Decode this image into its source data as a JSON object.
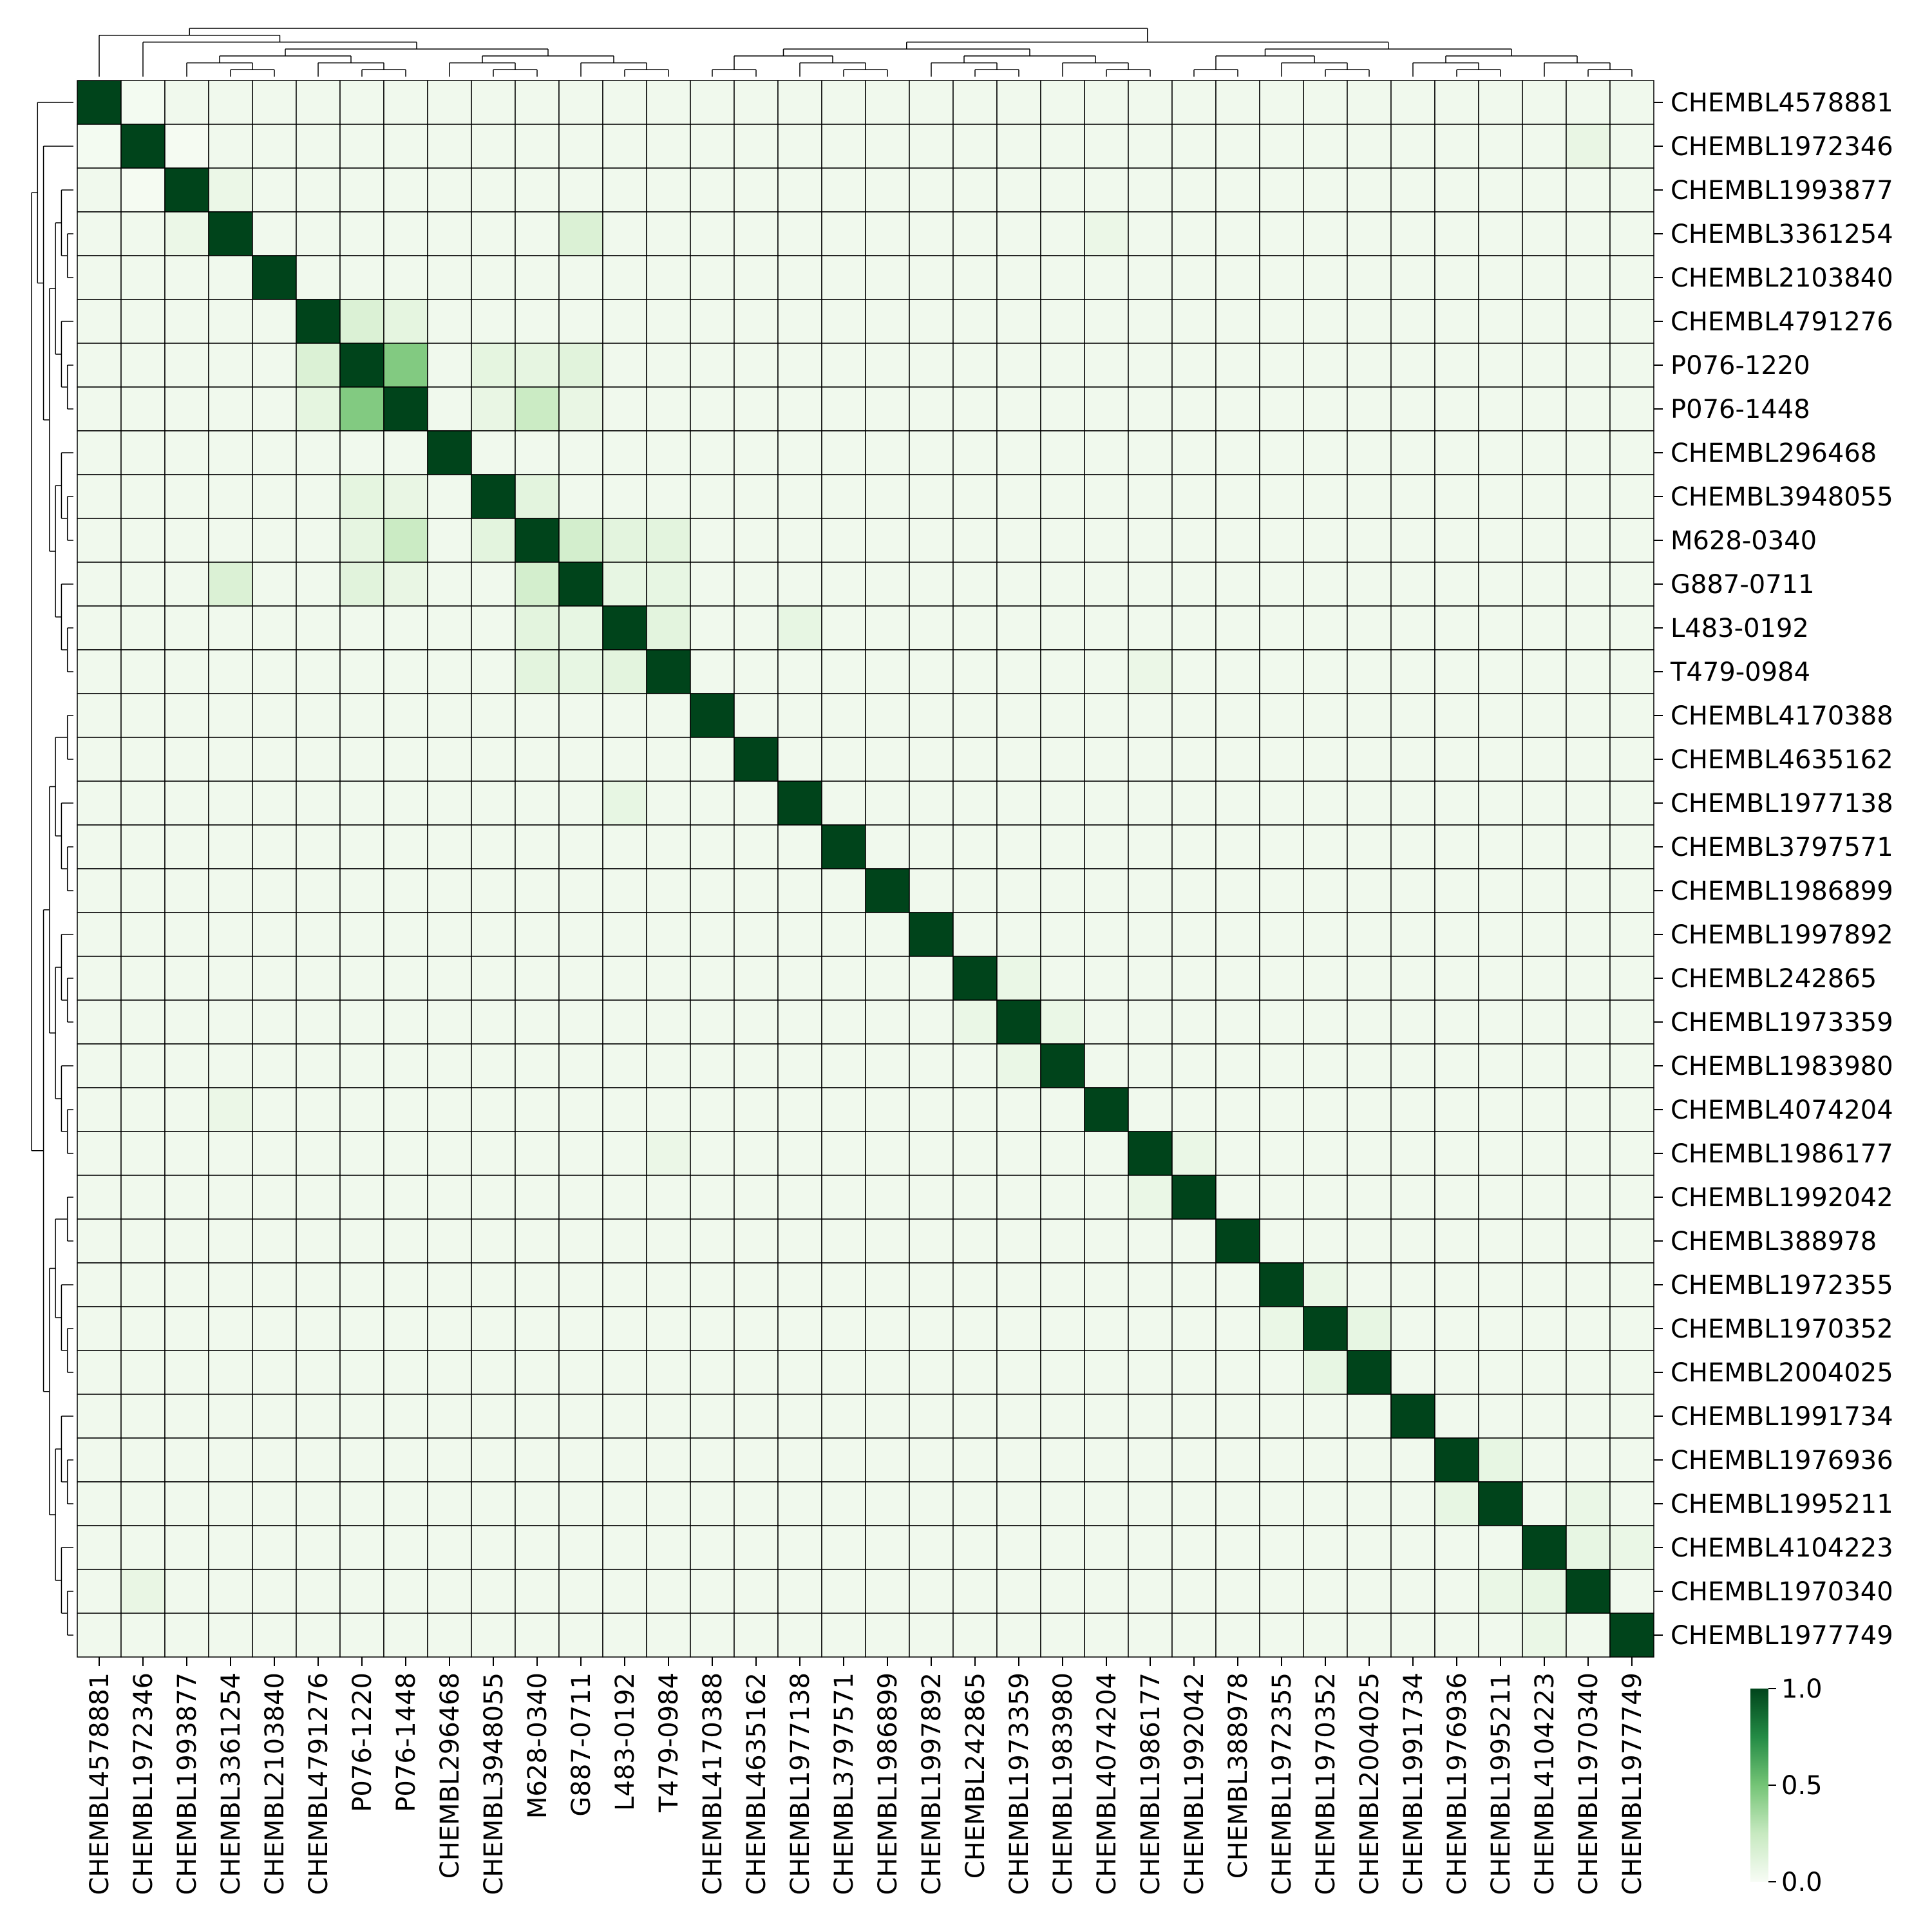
{
  "chart_data": {
    "type": "heatmap",
    "title": "",
    "xlabel": "",
    "ylabel": "",
    "colormap": "Greens",
    "colors": {
      "low": "#f7fcf5",
      "mid": "#74c476",
      "high": "#00441b",
      "grid": "#000000",
      "dendrogram": "#000000"
    },
    "labels": [
      "CHEMBL4578881",
      "CHEMBL1972346",
      "CHEMBL1993877",
      "CHEMBL3361254",
      "CHEMBL2103840",
      "CHEMBL4791276",
      "P076-1220",
      "P076-1448",
      "CHEMBL296468",
      "CHEMBL3948055",
      "M628-0340",
      "G887-0711",
      "L483-0192",
      "T479-0984",
      "CHEMBL4170388",
      "CHEMBL4635162",
      "CHEMBL1977138",
      "CHEMBL3797571",
      "CHEMBL1986899",
      "CHEMBL1997892",
      "CHEMBL242865",
      "CHEMBL1973359",
      "CHEMBL1983980",
      "CHEMBL4074204",
      "CHEMBL1986177",
      "CHEMBL1992042",
      "CHEMBL388978",
      "CHEMBL1972355",
      "CHEMBL1970352",
      "CHEMBL2004025",
      "CHEMBL1991734",
      "CHEMBL1976936",
      "CHEMBL1995211",
      "CHEMBL4104223",
      "CHEMBL1970340",
      "CHEMBL1977749"
    ],
    "base_value": 0.06,
    "diagonal_value": 1.0,
    "highlights": [
      {
        "i": 6,
        "j": 7,
        "value": 0.52
      },
      {
        "i": 7,
        "j": 10,
        "value": 0.28
      },
      {
        "i": 3,
        "j": 11,
        "value": 0.2
      },
      {
        "i": 10,
        "j": 11,
        "value": 0.24
      },
      {
        "i": 5,
        "j": 6,
        "value": 0.2
      },
      {
        "i": 5,
        "j": 7,
        "value": 0.15
      },
      {
        "i": 6,
        "j": 9,
        "value": 0.15
      },
      {
        "i": 6,
        "j": 11,
        "value": 0.17
      },
      {
        "i": 9,
        "j": 10,
        "value": 0.16
      },
      {
        "i": 10,
        "j": 12,
        "value": 0.16
      },
      {
        "i": 10,
        "j": 13,
        "value": 0.16
      },
      {
        "i": 12,
        "j": 13,
        "value": 0.16
      },
      {
        "i": 6,
        "j": 10,
        "value": 0.14
      },
      {
        "i": 11,
        "j": 12,
        "value": 0.13
      },
      {
        "i": 11,
        "j": 13,
        "value": 0.13
      },
      {
        "i": 7,
        "j": 11,
        "value": 0.12
      },
      {
        "i": 7,
        "j": 9,
        "value": 0.12
      },
      {
        "i": 12,
        "j": 16,
        "value": 0.13
      },
      {
        "i": 1,
        "j": 34,
        "value": 0.12
      },
      {
        "i": 28,
        "j": 29,
        "value": 0.13
      },
      {
        "i": 31,
        "j": 32,
        "value": 0.13
      },
      {
        "i": 33,
        "j": 34,
        "value": 0.13
      },
      {
        "i": 21,
        "j": 22,
        "value": 0.11
      },
      {
        "i": 20,
        "j": 21,
        "value": 0.11
      },
      {
        "i": 24,
        "j": 25,
        "value": 0.11
      },
      {
        "i": 27,
        "j": 28,
        "value": 0.11
      },
      {
        "i": 1,
        "j": 1,
        "value": 1.0
      },
      {
        "i": 1,
        "j": 2,
        "value": 0.02
      },
      {
        "i": 0,
        "j": 1,
        "value": 0.03
      },
      {
        "i": 32,
        "j": 34,
        "value": 0.11
      },
      {
        "i": 33,
        "j": 35,
        "value": 0.11
      },
      {
        "i": 2,
        "j": 3,
        "value": 0.1
      },
      {
        "i": 3,
        "j": 23,
        "value": 0.1
      },
      {
        "i": 13,
        "j": 24,
        "value": 0.1
      }
    ],
    "colorbar": {
      "ticks": [
        "1.0",
        "0.5",
        "0.0"
      ],
      "min": 0.0,
      "max": 1.0
    }
  }
}
